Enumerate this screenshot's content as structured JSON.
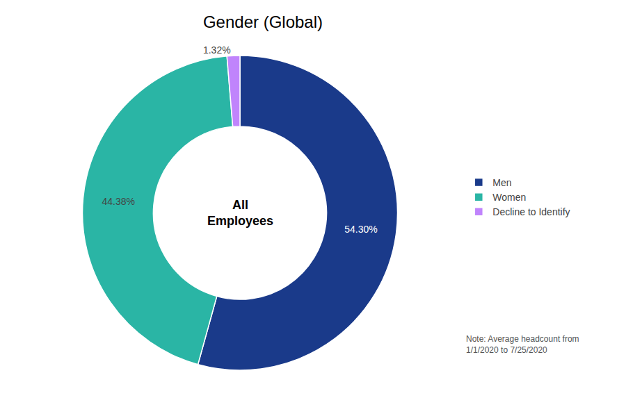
{
  "chart_data": {
    "type": "pie",
    "title": "Gender (Global)",
    "categories": [
      "Men",
      "Women",
      "Decline to Identify"
    ],
    "values": [
      54.3,
      44.38,
      1.32
    ],
    "value_labels": [
      "54.30%",
      "44.38%",
      "1.32%"
    ],
    "colors": [
      "#1a3a8a",
      "#2ab5a5",
      "#c084fc"
    ],
    "annotations": [
      "All",
      "Employees",
      "Note: Average headcount from\n1/1/2020 to 7/25/2020"
    ],
    "legend": "right",
    "data_labels": true
  }
}
